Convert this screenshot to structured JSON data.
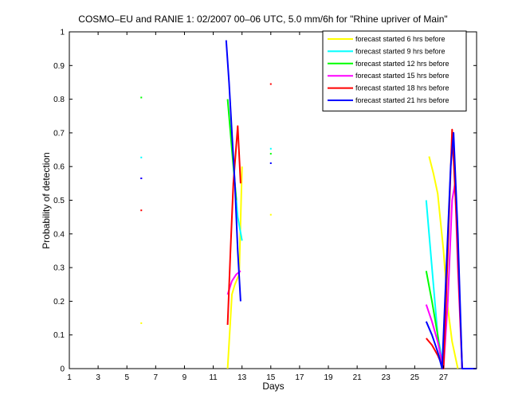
{
  "chart_data": {
    "type": "line",
    "title": "COSMO–EU and RANIE 1: 02/2007 00–06 UTC, 5.0 mm/6h for \"Rhine upriver of Main\"",
    "xlabel": "Days",
    "ylabel": "Probability of detection",
    "xlim": [
      1,
      29.3
    ],
    "ylim": [
      0,
      1
    ],
    "xticks": [
      1,
      3,
      5,
      7,
      9,
      11,
      13,
      15,
      17,
      19,
      21,
      23,
      25,
      27
    ],
    "xtick_labels": [
      "1",
      "3",
      "5",
      "7",
      "9",
      "11",
      "13",
      "15",
      "17",
      "19",
      "21",
      "23",
      "25",
      "27"
    ],
    "yticks": [
      0,
      0.1,
      0.2,
      0.3,
      0.4,
      0.5,
      0.6,
      0.7,
      0.8,
      0.9,
      1
    ],
    "ytick_labels": [
      "0",
      "0.1",
      "0.2",
      "0.3",
      "0.4",
      "0.5",
      "0.6",
      "0.7",
      "0.8",
      "0.9",
      "1"
    ],
    "grid": false,
    "legend_position": "top-right",
    "series": [
      {
        "name": "forecast started 6 hrs before",
        "color": "#ffff00",
        "segments": [
          [
            [
              12.0,
              0.0
            ],
            [
              12.3,
              0.22
            ],
            [
              12.5,
              0.25
            ],
            [
              12.8,
              0.28
            ],
            [
              13.0,
              0.6
            ]
          ],
          [
            [
              26.0,
              0.63
            ],
            [
              26.3,
              0.58
            ],
            [
              26.6,
              0.52
            ],
            [
              27.0,
              0.35
            ],
            [
              27.3,
              0.18
            ],
            [
              27.6,
              0.08
            ],
            [
              28.0,
              0.0
            ]
          ]
        ],
        "points": [
          [
            6.0,
            0.135
          ],
          [
            15.0,
            0.457
          ]
        ]
      },
      {
        "name": "forecast started 9 hrs before",
        "color": "#00ffff",
        "segments": [
          [
            [
              12.3,
              0.68
            ],
            [
              12.5,
              0.55
            ],
            [
              12.7,
              0.45
            ],
            [
              13.0,
              0.38
            ]
          ],
          [
            [
              25.8,
              0.5
            ],
            [
              26.2,
              0.3
            ],
            [
              26.6,
              0.1
            ],
            [
              27.0,
              0.0
            ]
          ]
        ],
        "points": [
          [
            6.0,
            0.627
          ],
          [
            15.0,
            0.653
          ]
        ]
      },
      {
        "name": "forecast started 12 hrs before",
        "color": "#00ff00",
        "segments": [
          [
            [
              12.0,
              0.8
            ],
            [
              12.3,
              0.65
            ],
            [
              12.6,
              0.5
            ]
          ],
          [
            [
              25.8,
              0.29
            ],
            [
              26.2,
              0.2
            ],
            [
              26.6,
              0.1
            ],
            [
              26.9,
              0.0
            ]
          ]
        ],
        "points": [
          [
            6.0,
            0.805
          ],
          [
            15.0,
            0.638
          ]
        ]
      },
      {
        "name": "forecast started 15 hrs before",
        "color": "#ff00ff",
        "segments": [
          [
            [
              12.0,
              0.22
            ],
            [
              12.3,
              0.26
            ],
            [
              12.6,
              0.28
            ],
            [
              12.9,
              0.29
            ]
          ],
          [
            [
              25.8,
              0.19
            ],
            [
              26.2,
              0.14
            ],
            [
              26.6,
              0.08
            ],
            [
              27.0,
              0.0
            ],
            [
              27.3,
              0.2
            ],
            [
              27.6,
              0.5
            ],
            [
              27.8,
              0.55
            ],
            [
              28.0,
              0.3
            ],
            [
              28.3,
              0.0
            ]
          ]
        ],
        "points": [
          [
            6.0,
            0.565
          ]
        ]
      },
      {
        "name": "forecast started 18 hrs before",
        "color": "#ff0000",
        "segments": [
          [
            [
              12.0,
              0.13
            ],
            [
              12.2,
              0.35
            ],
            [
              12.4,
              0.55
            ],
            [
              12.7,
              0.72
            ],
            [
              12.9,
              0.55
            ]
          ],
          [
            [
              25.8,
              0.09
            ],
            [
              26.2,
              0.07
            ],
            [
              26.6,
              0.04
            ],
            [
              27.0,
              0.0
            ],
            [
              27.3,
              0.35
            ],
            [
              27.6,
              0.71
            ],
            [
              27.9,
              0.45
            ],
            [
              28.3,
              0.0
            ]
          ]
        ],
        "points": [
          [
            6.0,
            0.47
          ],
          [
            15.0,
            0.845
          ]
        ]
      },
      {
        "name": "forecast started 21 hrs before",
        "color": "#0000ff",
        "segments": [
          [
            [
              11.9,
              0.975
            ],
            [
              12.1,
              0.85
            ],
            [
              12.3,
              0.7
            ],
            [
              12.5,
              0.55
            ],
            [
              12.7,
              0.35
            ],
            [
              12.9,
              0.2
            ]
          ],
          [
            [
              25.8,
              0.14
            ],
            [
              26.2,
              0.1
            ],
            [
              26.6,
              0.05
            ],
            [
              26.9,
              0.0
            ],
            [
              27.2,
              0.3
            ],
            [
              27.5,
              0.6
            ],
            [
              27.7,
              0.7
            ],
            [
              28.0,
              0.4
            ],
            [
              28.3,
              0.0
            ],
            [
              29.3,
              0.0
            ]
          ]
        ],
        "points": [
          [
            6.0,
            0.565
          ],
          [
            15.0,
            0.61
          ]
        ]
      }
    ]
  }
}
